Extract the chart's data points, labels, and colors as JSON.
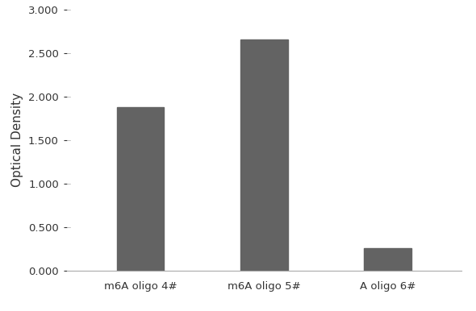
{
  "categories": [
    "m6A oligo 4#",
    "m6A oligo 5#",
    "A oligo 6#"
  ],
  "values": [
    1.876,
    2.655,
    0.255
  ],
  "bar_color": "#636363",
  "ylabel": "Optical Density",
  "ylim": [
    0.0,
    3.0
  ],
  "yticks": [
    0.0,
    0.5,
    1.0,
    1.5,
    2.0,
    2.5,
    3.0
  ],
  "ytick_labels": [
    "0.000",
    "0.500",
    "1.000",
    "1.500",
    "2.000",
    "2.500",
    "3.000"
  ],
  "background_color": "#ffffff",
  "bar_width": 0.38,
  "ylabel_fontsize": 11,
  "tick_fontsize": 9.5,
  "spine_color": "#aaaaaa",
  "text_color": "#333333"
}
